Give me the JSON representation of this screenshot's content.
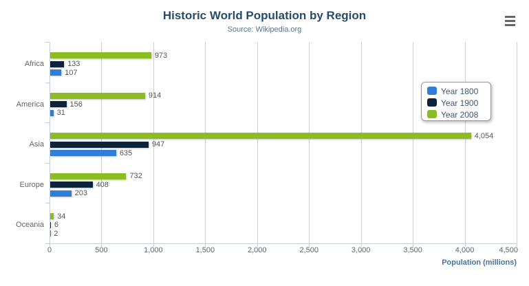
{
  "header": {
    "title": "Historic World Population by Region",
    "subtitle": "Source: Wikipedia.org"
  },
  "menu": {
    "icon": "hamburger-icon"
  },
  "chart_data": {
    "type": "bar",
    "orientation": "horizontal",
    "title": "Historic World Population by Region",
    "subtitle": "Source: Wikipedia.org",
    "categories": [
      "Africa",
      "America",
      "Asia",
      "Europe",
      "Oceania"
    ],
    "series": [
      {
        "name": "Year 1800",
        "color": "#2f7ed8",
        "values": [
          107,
          31,
          635,
          203,
          2
        ]
      },
      {
        "name": "Year 1900",
        "color": "#0d233a",
        "values": [
          133,
          156,
          947,
          408,
          6
        ]
      },
      {
        "name": "Year 2008",
        "color": "#8bbc21",
        "values": [
          973,
          914,
          4054,
          732,
          34
        ]
      }
    ],
    "bar_display_order_top_to_bottom": [
      "Year 2008",
      "Year 1900",
      "Year 1800"
    ],
    "xlabel": "Population (millions)",
    "ylabel": "",
    "xlim": [
      0,
      4500
    ],
    "tick_interval": 500,
    "tick_labels": [
      "0",
      "500",
      "1,000",
      "1,500",
      "2,000",
      "2,500",
      "3,000",
      "3,500",
      "4,000",
      "4,500"
    ],
    "grid": true,
    "data_labels": true,
    "legend_position": "right",
    "legend_entries": [
      "Year 1800",
      "Year 1900",
      "Year 2008"
    ]
  },
  "colors": {
    "title": "#274b6d",
    "subtitle": "#4d759e",
    "axis_title": "#4572a7",
    "axis_line": "#c0d0e0",
    "gridline": "#ccd0d4",
    "label": "#666666",
    "data_label": "#555555",
    "legend_text": "#3e576f"
  }
}
